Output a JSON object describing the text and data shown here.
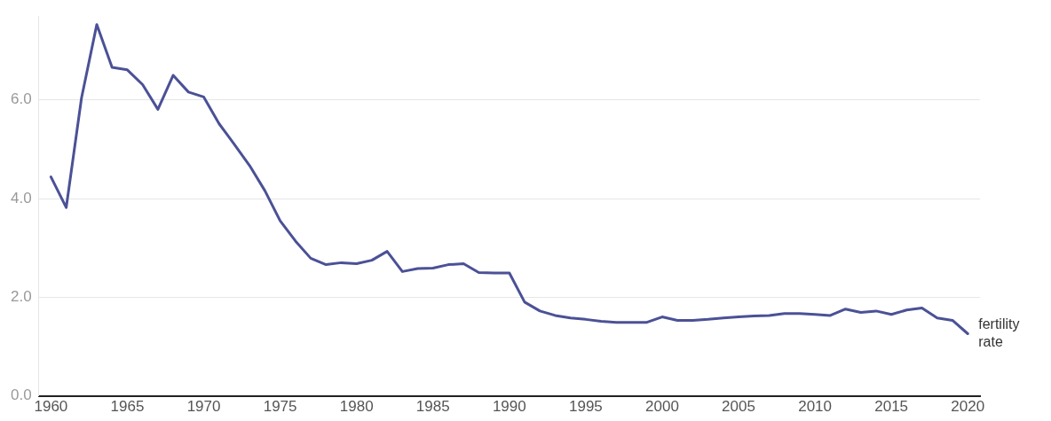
{
  "chart_data": {
    "type": "line",
    "x": [
      1960,
      1961,
      1962,
      1963,
      1964,
      1965,
      1966,
      1967,
      1968,
      1969,
      1970,
      1971,
      1972,
      1973,
      1974,
      1975,
      1976,
      1977,
      1978,
      1979,
      1980,
      1981,
      1982,
      1983,
      1984,
      1985,
      1986,
      1987,
      1988,
      1989,
      1990,
      1991,
      1992,
      1993,
      1994,
      1995,
      1996,
      1997,
      1998,
      1999,
      2000,
      2001,
      2002,
      2003,
      2004,
      2005,
      2006,
      2007,
      2008,
      2009,
      2010,
      2011,
      2012,
      2013,
      2014,
      2015,
      2016,
      2017,
      2018,
      2019,
      2020
    ],
    "series": [
      {
        "color": "#4b5196",
        "values": [
          4.44,
          3.82,
          6.04,
          7.53,
          6.66,
          6.61,
          6.31,
          5.81,
          6.5,
          6.16,
          6.06,
          5.52,
          5.1,
          4.67,
          4.16,
          3.55,
          3.14,
          2.79,
          2.66,
          2.7,
          2.68,
          2.75,
          2.93,
          2.52,
          2.58,
          2.59,
          2.66,
          2.68,
          2.5,
          2.49,
          2.49,
          1.9,
          1.72,
          1.63,
          1.58,
          1.55,
          1.51,
          1.49,
          1.49,
          1.49,
          1.6,
          1.53,
          1.53,
          1.55,
          1.58,
          1.6,
          1.62,
          1.63,
          1.67,
          1.67,
          1.65,
          1.63,
          1.76,
          1.69,
          1.72,
          1.65,
          1.74,
          1.78,
          1.58,
          1.53,
          1.26
        ]
      }
    ],
    "xlim": [
      1959.2,
      2020.8
    ],
    "xticks": [
      1960,
      1965,
      1970,
      1975,
      1980,
      1985,
      1990,
      1995,
      2000,
      2005,
      2010,
      2015,
      2020
    ],
    "ylim": [
      0,
      7.7
    ],
    "yticks": [
      {
        "value": 0,
        "label": "0.0"
      },
      {
        "value": 2,
        "label": "2.0"
      },
      {
        "value": 4,
        "label": "4.0"
      },
      {
        "value": 6,
        "label": "6.0"
      }
    ],
    "grid": "y",
    "legend": false,
    "marker": "none",
    "line_style": "solid",
    "annotations": [
      {
        "text": "fertility rate",
        "x": 2020,
        "y": 1.26
      }
    ]
  }
}
